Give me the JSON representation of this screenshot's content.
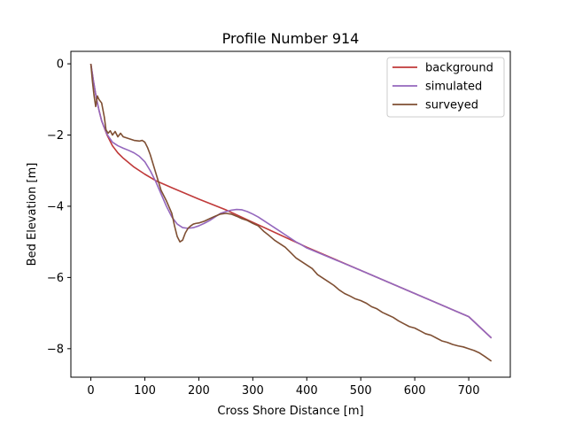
{
  "chart_data": {
    "type": "line",
    "title": "Profile Number 914",
    "xlabel": "Cross Shore Distance [m]",
    "ylabel": "Bed Elevation [m]",
    "xlim": [
      -37,
      777
    ],
    "ylim": [
      -8.8,
      0.35
    ],
    "xticks": [
      0,
      100,
      200,
      300,
      400,
      500,
      600,
      700
    ],
    "yticks": [
      0,
      -2,
      -4,
      -6,
      -8
    ],
    "xtick_labels": [
      "0",
      "100",
      "200",
      "300",
      "400",
      "500",
      "600",
      "700"
    ],
    "ytick_labels": [
      "0",
      "−2",
      "−4",
      "−6",
      "−8"
    ],
    "grid": false,
    "legend_position": "top-right",
    "series": [
      {
        "name": "background",
        "color": "#c03a3a",
        "x": [
          0,
          5,
          10,
          15,
          20,
          30,
          40,
          50,
          60,
          80,
          100,
          120,
          150,
          200,
          250,
          300,
          350,
          400,
          500,
          600,
          700,
          742
        ],
        "y": [
          0,
          -0.5,
          -0.95,
          -1.3,
          -1.6,
          -2.0,
          -2.3,
          -2.5,
          -2.65,
          -2.9,
          -3.1,
          -3.28,
          -3.48,
          -3.8,
          -4.1,
          -4.45,
          -4.8,
          -5.15,
          -5.8,
          -6.45,
          -7.1,
          -7.7
        ]
      },
      {
        "name": "simulated",
        "color": "#9467bd",
        "x": [
          0,
          5,
          10,
          15,
          20,
          30,
          40,
          50,
          60,
          70,
          80,
          90,
          100,
          110,
          120,
          130,
          140,
          150,
          160,
          170,
          180,
          190,
          200,
          210,
          220,
          230,
          240,
          250,
          260,
          270,
          280,
          290,
          300,
          310,
          320,
          330,
          340,
          350,
          360,
          370,
          380,
          390,
          400,
          500,
          600,
          700,
          742
        ],
        "y": [
          0,
          -0.5,
          -0.95,
          -1.3,
          -1.6,
          -1.98,
          -2.2,
          -2.3,
          -2.37,
          -2.43,
          -2.5,
          -2.6,
          -2.75,
          -3.0,
          -3.3,
          -3.65,
          -4.0,
          -4.3,
          -4.5,
          -4.6,
          -4.62,
          -4.6,
          -4.55,
          -4.48,
          -4.4,
          -4.3,
          -4.2,
          -4.15,
          -4.11,
          -4.09,
          -4.1,
          -4.15,
          -4.22,
          -4.3,
          -4.4,
          -4.5,
          -4.6,
          -4.7,
          -4.8,
          -4.9,
          -5.0,
          -5.08,
          -5.17,
          -5.8,
          -6.45,
          -7.1,
          -7.7
        ]
      },
      {
        "name": "surveyed",
        "color": "#7f4f33",
        "x": [
          0,
          3,
          6,
          9,
          12,
          15,
          20,
          25,
          28,
          32,
          36,
          40,
          45,
          50,
          55,
          60,
          70,
          80,
          90,
          95,
          100,
          105,
          110,
          120,
          130,
          140,
          150,
          155,
          160,
          165,
          170,
          175,
          180,
          185,
          190,
          195,
          200,
          210,
          220,
          230,
          240,
          250,
          260,
          270,
          280,
          290,
          300,
          310,
          320,
          330,
          340,
          350,
          360,
          370,
          380,
          390,
          400,
          410,
          420,
          430,
          440,
          450,
          460,
          470,
          480,
          490,
          500,
          510,
          520,
          530,
          540,
          550,
          560,
          570,
          580,
          590,
          600,
          610,
          620,
          630,
          640,
          650,
          660,
          670,
          680,
          690,
          700,
          710,
          720,
          730,
          742
        ],
        "y": [
          0,
          -0.5,
          -0.9,
          -1.2,
          -0.9,
          -1.0,
          -1.1,
          -1.5,
          -1.85,
          -1.95,
          -1.88,
          -2.0,
          -1.9,
          -2.05,
          -1.95,
          -2.05,
          -2.1,
          -2.15,
          -2.17,
          -2.15,
          -2.2,
          -2.35,
          -2.55,
          -3.05,
          -3.55,
          -3.85,
          -4.2,
          -4.55,
          -4.85,
          -5.0,
          -4.95,
          -4.75,
          -4.62,
          -4.55,
          -4.5,
          -4.48,
          -4.47,
          -4.42,
          -4.35,
          -4.28,
          -4.22,
          -4.2,
          -4.22,
          -4.28,
          -4.35,
          -4.4,
          -4.48,
          -4.55,
          -4.7,
          -4.82,
          -4.95,
          -5.05,
          -5.15,
          -5.3,
          -5.45,
          -5.55,
          -5.65,
          -5.75,
          -5.92,
          -6.02,
          -6.12,
          -6.22,
          -6.35,
          -6.45,
          -6.52,
          -6.6,
          -6.65,
          -6.72,
          -6.82,
          -6.88,
          -6.98,
          -7.05,
          -7.12,
          -7.22,
          -7.3,
          -7.38,
          -7.42,
          -7.5,
          -7.58,
          -7.62,
          -7.7,
          -7.78,
          -7.82,
          -7.88,
          -7.92,
          -7.95,
          -8.0,
          -8.05,
          -8.12,
          -8.22,
          -8.35
        ]
      }
    ]
  }
}
